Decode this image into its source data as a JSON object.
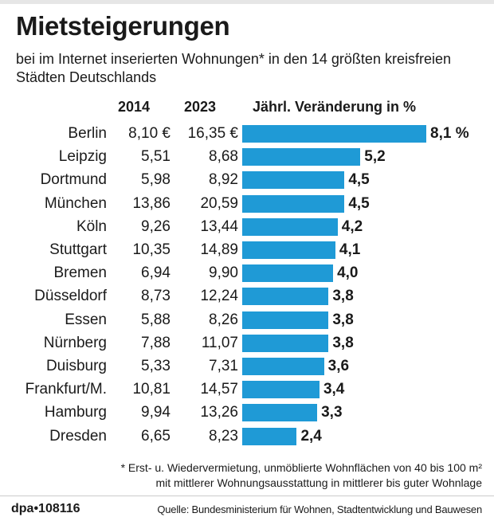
{
  "title": "Mietsteigerungen",
  "subtitle": "bei im Internet inserierten Wohnungen* in den 14 größten kreisfreien Städten Deutschlands",
  "columns": {
    "y2014": "2014",
    "y2023": "2023",
    "change": "Jährl. Veränderung in %"
  },
  "chart_data": {
    "type": "bar",
    "orientation": "horizontal",
    "title": "Mietsteigerungen",
    "xlabel": "Jährl. Veränderung in %",
    "xlim": [
      0,
      8.1
    ],
    "categories": [
      "Berlin",
      "Leipzig",
      "Dortmund",
      "München",
      "Köln",
      "Stuttgart",
      "Bremen",
      "Düsseldorf",
      "Essen",
      "Nürnberg",
      "Duisburg",
      "Frankfurt/M.",
      "Hamburg",
      "Dresden"
    ],
    "values": [
      8.1,
      5.2,
      4.5,
      4.5,
      4.2,
      4.1,
      4.0,
      3.8,
      3.8,
      3.8,
      3.6,
      3.4,
      3.3,
      2.4
    ],
    "value_labels": [
      "8,1 %",
      "5,2",
      "4,5",
      "4,5",
      "4,2",
      "4,1",
      "4,0",
      "3,8",
      "3,8",
      "3,8",
      "3,6",
      "3,4",
      "3,3",
      "2,4"
    ],
    "rent_2014": [
      "8,10 €",
      "5,51",
      "5,98",
      "13,86",
      "9,26",
      "10,35",
      "6,94",
      "8,73",
      "5,88",
      "7,88",
      "5,33",
      "10,81",
      "9,94",
      "6,65"
    ],
    "rent_2023": [
      "16,35 €",
      "8,68",
      "8,92",
      "20,59",
      "13,44",
      "14,89",
      "9,90",
      "12,24",
      "8,26",
      "11,07",
      "7,31",
      "14,57",
      "13,26",
      "8,23"
    ],
    "bar_color": "#1f9ad6"
  },
  "footnote_line1": "* Erst- u. Wiedervermietung, unmöblierte Wohnflächen von 40 bis 100 m²",
  "footnote_line2": "mit mittlerer Wohnungsausstattung in mittlerer bis guter Wohnlage",
  "credit": "dpa•108116",
  "source": "Quelle: Bundesministerium für Wohnen, Stadtentwicklung und Bauwesen"
}
